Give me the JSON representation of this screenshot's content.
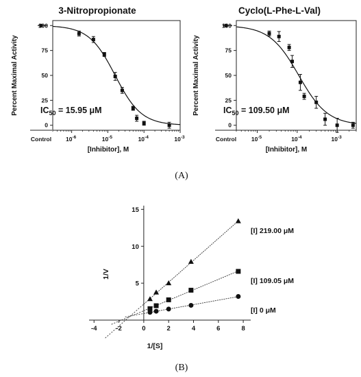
{
  "panel_labels": {
    "a": "(A)",
    "b": "(B)"
  },
  "chart_data": [
    {
      "type": "scatter",
      "title": "3-Nitropropionate",
      "xlabel": "[Inhibitor], M",
      "ylabel": "Percent Maximal Activity",
      "x_scale": "log",
      "xlim": [
        3e-07,
        0.001
      ],
      "ylim": [
        -5,
        105
      ],
      "yticks": [
        0,
        25,
        50,
        75,
        100
      ],
      "ytick_labels": [
        "0",
        "25",
        "50",
        "75",
        "100"
      ],
      "xtick_exponents": [
        -6,
        -5,
        -4,
        -3
      ],
      "xtick_base": "10",
      "control_label": "Control",
      "control_point": {
        "y": 100
      },
      "points": [
        {
          "x": 1.6e-06,
          "y": 92,
          "err": 2.5
        },
        {
          "x": 4e-06,
          "y": 86,
          "err": 3
        },
        {
          "x": 8e-06,
          "y": 71,
          "err": 2
        },
        {
          "x": 1.6e-05,
          "y": 49,
          "err": 4
        },
        {
          "x": 2.5e-05,
          "y": 35,
          "err": 3
        },
        {
          "x": 5e-05,
          "y": 17,
          "err": 2
        },
        {
          "x": 6.3e-05,
          "y": 7,
          "err": 3
        },
        {
          "x": 0.0001,
          "y": 2,
          "err": 2
        },
        {
          "x": 0.0005,
          "y": 0,
          "err": 3
        }
      ],
      "fit": {
        "ic50": 1.595e-05,
        "hill": 1.2
      },
      "ic50_label": "IC",
      "ic50_sub": "50",
      "ic50_text": " = 15.95 μM"
    },
    {
      "type": "scatter",
      "title": "Cyclo(L-Phe-L-Val)",
      "xlabel": "[Inhibitor], M",
      "ylabel": "Percent Maximal Activity",
      "x_scale": "log",
      "xlim": [
        3e-06,
        0.003
      ],
      "ylim": [
        -5,
        105
      ],
      "yticks": [
        0,
        25,
        50,
        75,
        100
      ],
      "ytick_labels": [
        "0",
        "25",
        "50",
        "75",
        "100"
      ],
      "xtick_exponents": [
        -5,
        -4,
        -3
      ],
      "xtick_base": "10",
      "control_label": "Control",
      "control_point": {
        "y": 100
      },
      "points": [
        {
          "x": 2e-05,
          "y": 92,
          "err": 2.5
        },
        {
          "x": 3.5e-05,
          "y": 89,
          "err": 5
        },
        {
          "x": 6.3e-05,
          "y": 78,
          "err": 3
        },
        {
          "x": 7.5e-05,
          "y": 64,
          "err": 6
        },
        {
          "x": 0.00012,
          "y": 43,
          "err": 8
        },
        {
          "x": 0.00015,
          "y": 29,
          "err": 3
        },
        {
          "x": 0.0003,
          "y": 23,
          "err": 6
        },
        {
          "x": 0.0005,
          "y": 6,
          "err": 6
        },
        {
          "x": 0.001,
          "y": 0,
          "err": 7
        },
        {
          "x": 0.0025,
          "y": 0,
          "err": 3
        }
      ],
      "fit": {
        "ic50": 0.0001095,
        "hill": 1.2
      },
      "ic50_label": "IC",
      "ic50_sub": "50",
      "ic50_text": " = 109.50 μM"
    },
    {
      "type": "line",
      "title": "",
      "xlabel": "1/[S]",
      "ylabel": "1/V",
      "xlim": [
        -4.4,
        8.6
      ],
      "ylim": [
        0,
        15.5
      ],
      "xticks": [
        -4,
        -2,
        0,
        2,
        4,
        6,
        8
      ],
      "xtick_labels": [
        "-4",
        "-2",
        "0",
        "2",
        "4",
        "6",
        "8"
      ],
      "yticks": [
        5,
        10,
        15
      ],
      "ytick_labels": [
        "5",
        "10",
        "15"
      ],
      "series": [
        {
          "name": "[I] 219.00 μM",
          "marker": "triangle",
          "x": [
            0.5,
            1,
            2,
            3.8,
            7.6
          ],
          "y": [
            2.85,
            3.75,
            5.0,
            7.9,
            13.4
          ],
          "line_from_x": -3.1,
          "line_to_x": 7.6
        },
        {
          "name": "[I] 109.05 μM",
          "marker": "square",
          "x": [
            0.5,
            1,
            2,
            3.8,
            7.6
          ],
          "y": [
            1.55,
            1.95,
            2.75,
            4.05,
            6.6
          ],
          "line_from_x": -2.6,
          "line_to_x": 7.6
        },
        {
          "name": "[I] 0 μM",
          "marker": "circle",
          "x": [
            0.5,
            1,
            2,
            3.8,
            7.6
          ],
          "y": [
            1.05,
            1.2,
            1.5,
            2.0,
            3.2
          ],
          "line_from_x": -1.5,
          "line_to_x": 7.6
        }
      ]
    }
  ]
}
